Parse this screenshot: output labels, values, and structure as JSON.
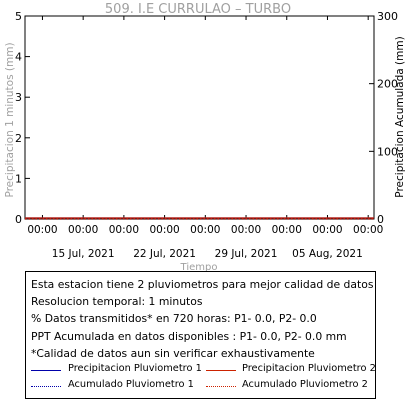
{
  "chart_data": {
    "type": "line",
    "title": "509. I.E CURRULAO – TURBO",
    "xlabel": "Tiempo",
    "ylabel_left": "Precipitacion 1 minutos (mm)",
    "ylabel_right": "Precipitacion Acumulada (mm)",
    "ylim_left": [
      0,
      5
    ],
    "ylim_right": [
      0,
      300
    ],
    "yticks_left": [
      0,
      1,
      2,
      3,
      4,
      5
    ],
    "yticks_right": [
      0,
      100,
      200,
      300
    ],
    "xlim": [
      "2021-07-10",
      "2021-08-09"
    ],
    "x_tick_time_labels": [
      "00:00",
      "00:00",
      "00:00",
      "00:00",
      "00:00",
      "00:00",
      "00:00",
      "00:00",
      "00:00"
    ],
    "x_tick_date_labels": [
      "15 Jul, 2021",
      "22 Jul, 2021",
      "29 Jul, 2021",
      "05 Aug, 2021"
    ],
    "grid": false,
    "series": [
      {
        "name": "Precipitacion Pluviometro 1",
        "axis": "left",
        "color": "#0000aa",
        "style": "solid",
        "x": [
          "2021-07-10",
          "2021-08-09"
        ],
        "values": [
          0,
          0
        ]
      },
      {
        "name": "Precipitacion Pluviometro 2",
        "axis": "left",
        "color": "#cc2200",
        "style": "solid",
        "x": [
          "2021-07-10",
          "2021-08-09"
        ],
        "values": [
          0,
          0
        ]
      },
      {
        "name": "Acumulado Pluviometro 1",
        "axis": "right",
        "color": "#0000aa",
        "style": "dotted",
        "x": [
          "2021-07-10",
          "2021-08-09"
        ],
        "values": [
          0,
          0
        ]
      },
      {
        "name": "Acumulado Pluviometro 2",
        "axis": "right",
        "color": "#cc2200",
        "style": "dotted",
        "x": [
          "2021-07-10",
          "2021-08-09"
        ],
        "values": [
          0,
          0
        ]
      }
    ]
  },
  "info": {
    "line1": "Esta estacion tiene 2 pluviometros para mejor calidad de datos",
    "line2": "Resolucion temporal: 1 minutos",
    "line3": "% Datos transmitidos* en 720 horas: P1-  0.0, P2-  0.0",
    "line4": "PPT Acumulada en datos disponibles : P1-  0.0, P2-  0.0 mm",
    "line5": "*Calidad de datos aun sin verificar exhaustivamente"
  },
  "colors": {
    "p1": "#0000aa",
    "p2": "#cc2200",
    "axis": "#000000",
    "muted": "#a0a0a0"
  }
}
